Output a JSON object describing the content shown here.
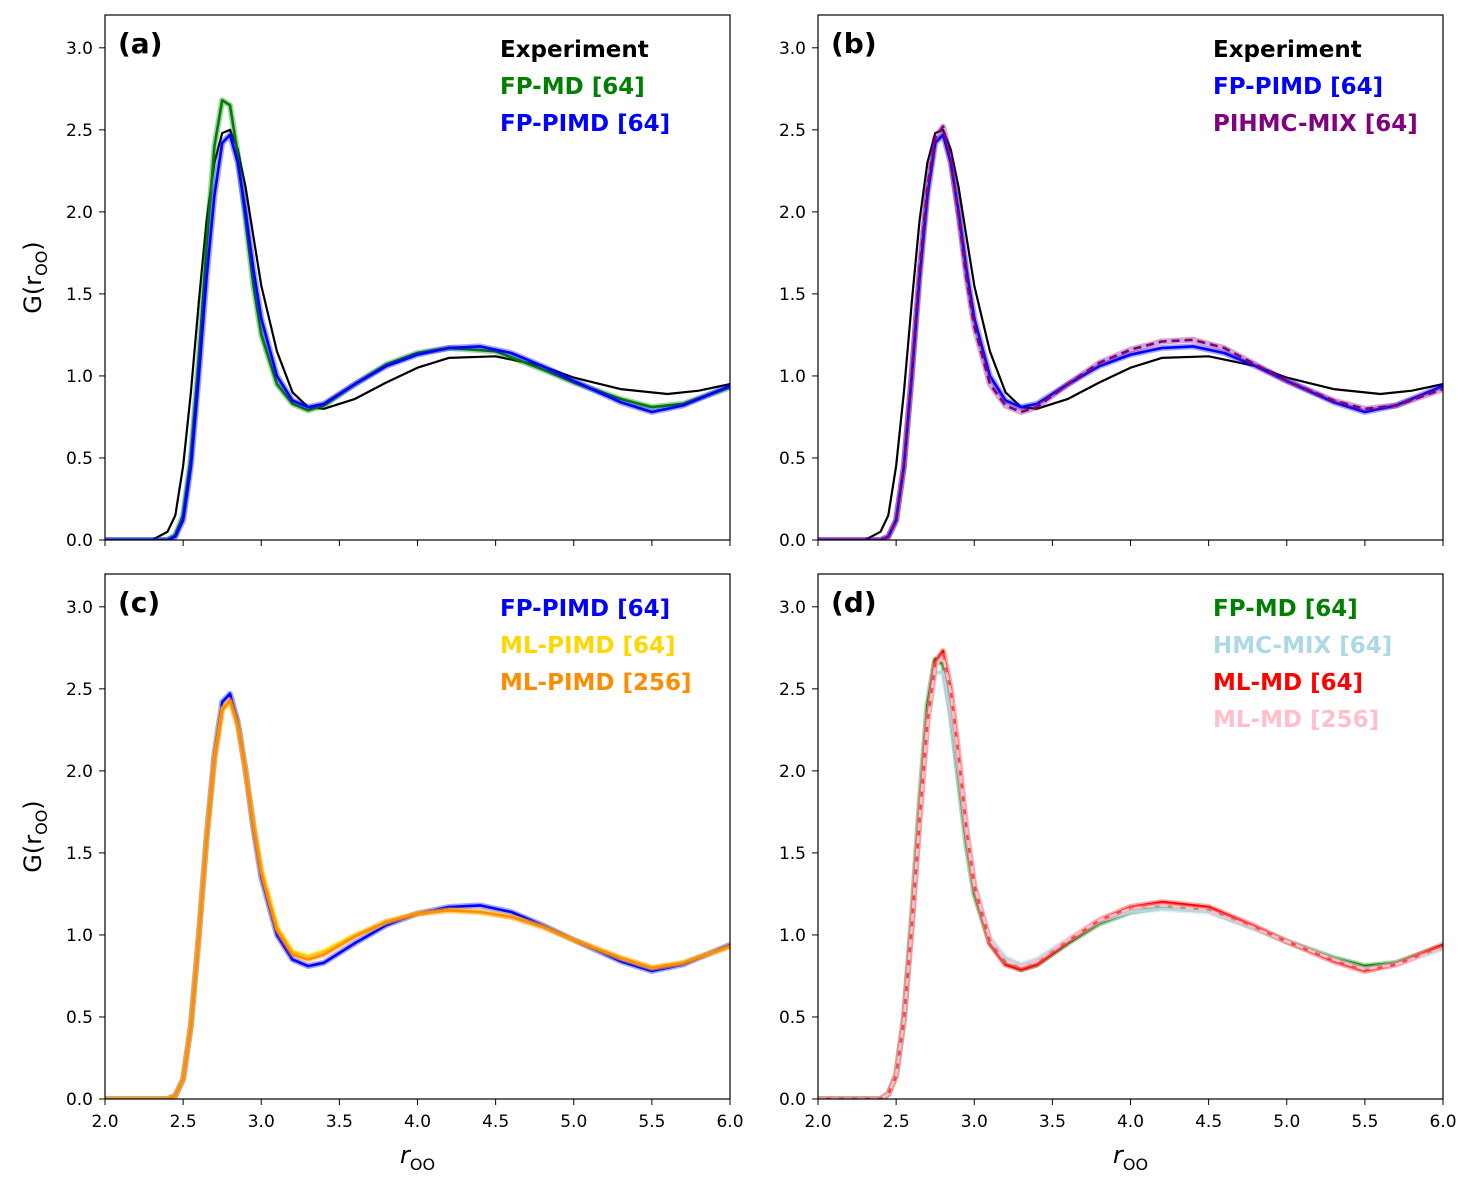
{
  "figure": {
    "ylabel_main": "G(r",
    "ylabel_sub": "OO",
    "ylabel_close": ")",
    "xlabel_main": "r",
    "xlabel_sub": "OO"
  },
  "chart_data": [
    {
      "type": "line",
      "id": "a",
      "title": "(a)",
      "xlim": [
        2.0,
        6.0
      ],
      "ylim": [
        0.0,
        3.2
      ],
      "xticks": [
        2.0,
        2.5,
        3.0,
        3.5,
        4.0,
        4.5,
        5.0,
        5.5,
        6.0
      ],
      "yticks": [
        0.0,
        0.5,
        1.0,
        1.5,
        2.0,
        2.5,
        3.0
      ],
      "show_xticklabels": false,
      "show_ylabel": true,
      "show_xlabel": false,
      "legend_position": "top-right",
      "series": [
        {
          "name": "Experiment",
          "color": "#000000",
          "dash": "solid",
          "x": [
            2.0,
            2.3,
            2.4,
            2.45,
            2.5,
            2.55,
            2.6,
            2.65,
            2.7,
            2.75,
            2.8,
            2.85,
            2.9,
            2.95,
            3.0,
            3.1,
            3.2,
            3.3,
            3.4,
            3.6,
            3.8,
            4.0,
            4.2,
            4.5,
            4.8,
            5.0,
            5.3,
            5.6,
            5.8,
            6.0
          ],
          "y": [
            0.0,
            0.0,
            0.05,
            0.15,
            0.45,
            0.9,
            1.45,
            1.95,
            2.3,
            2.48,
            2.5,
            2.38,
            2.15,
            1.85,
            1.55,
            1.15,
            0.9,
            0.81,
            0.8,
            0.86,
            0.96,
            1.05,
            1.11,
            1.12,
            1.06,
            0.99,
            0.92,
            0.89,
            0.91,
            0.95
          ]
        },
        {
          "name": "FP-MD [64]",
          "color": "#008000",
          "dash": "solid",
          "x": [
            2.0,
            2.4,
            2.45,
            2.5,
            2.55,
            2.6,
            2.65,
            2.7,
            2.75,
            2.8,
            2.85,
            2.9,
            2.95,
            3.0,
            3.1,
            3.2,
            3.3,
            3.4,
            3.6,
            3.8,
            4.0,
            4.2,
            4.5,
            4.8,
            5.0,
            5.3,
            5.5,
            5.7,
            6.0
          ],
          "y": [
            0.0,
            0.0,
            0.03,
            0.15,
            0.5,
            1.1,
            1.8,
            2.4,
            2.68,
            2.65,
            2.35,
            1.95,
            1.55,
            1.25,
            0.95,
            0.83,
            0.79,
            0.82,
            0.95,
            1.07,
            1.14,
            1.17,
            1.15,
            1.04,
            0.96,
            0.86,
            0.81,
            0.83,
            0.93
          ]
        },
        {
          "name": "FP-PIMD [64]",
          "color": "#0000ff",
          "dash": "solid",
          "x": [
            2.0,
            2.4,
            2.45,
            2.5,
            2.55,
            2.6,
            2.65,
            2.7,
            2.75,
            2.8,
            2.85,
            2.9,
            2.95,
            3.0,
            3.1,
            3.2,
            3.3,
            3.4,
            3.6,
            3.8,
            4.0,
            4.2,
            4.4,
            4.6,
            4.8,
            5.0,
            5.3,
            5.5,
            5.7,
            6.0
          ],
          "y": [
            0.0,
            0.0,
            0.02,
            0.12,
            0.45,
            1.0,
            1.6,
            2.1,
            2.42,
            2.47,
            2.3,
            2.0,
            1.65,
            1.35,
            1.0,
            0.85,
            0.81,
            0.83,
            0.95,
            1.06,
            1.13,
            1.17,
            1.18,
            1.14,
            1.06,
            0.97,
            0.84,
            0.78,
            0.82,
            0.94
          ]
        }
      ]
    },
    {
      "type": "line",
      "id": "b",
      "title": "(b)",
      "xlim": [
        2.0,
        6.0
      ],
      "ylim": [
        0.0,
        3.2
      ],
      "xticks": [
        2.0,
        2.5,
        3.0,
        3.5,
        4.0,
        4.5,
        5.0,
        5.5,
        6.0
      ],
      "yticks": [
        0.0,
        0.5,
        1.0,
        1.5,
        2.0,
        2.5,
        3.0
      ],
      "show_xticklabels": false,
      "show_ylabel": false,
      "show_xlabel": false,
      "legend_position": "top-right",
      "series": [
        {
          "name": "Experiment",
          "color": "#000000",
          "dash": "solid",
          "x": [
            2.0,
            2.3,
            2.4,
            2.45,
            2.5,
            2.55,
            2.6,
            2.65,
            2.7,
            2.75,
            2.8,
            2.85,
            2.9,
            2.95,
            3.0,
            3.1,
            3.2,
            3.3,
            3.4,
            3.6,
            3.8,
            4.0,
            4.2,
            4.5,
            4.8,
            5.0,
            5.3,
            5.6,
            5.8,
            6.0
          ],
          "y": [
            0.0,
            0.0,
            0.05,
            0.15,
            0.45,
            0.9,
            1.45,
            1.95,
            2.3,
            2.48,
            2.5,
            2.38,
            2.15,
            1.85,
            1.55,
            1.15,
            0.9,
            0.81,
            0.8,
            0.86,
            0.96,
            1.05,
            1.11,
            1.12,
            1.06,
            0.99,
            0.92,
            0.89,
            0.91,
            0.95
          ]
        },
        {
          "name": "FP-PIMD [64]",
          "color": "#0000ff",
          "dash": "solid",
          "x": [
            2.0,
            2.4,
            2.45,
            2.5,
            2.55,
            2.6,
            2.65,
            2.7,
            2.75,
            2.8,
            2.85,
            2.9,
            2.95,
            3.0,
            3.1,
            3.2,
            3.3,
            3.4,
            3.6,
            3.8,
            4.0,
            4.2,
            4.4,
            4.6,
            4.8,
            5.0,
            5.3,
            5.5,
            5.7,
            6.0
          ],
          "y": [
            0.0,
            0.0,
            0.02,
            0.12,
            0.45,
            1.0,
            1.6,
            2.1,
            2.42,
            2.47,
            2.3,
            2.0,
            1.65,
            1.35,
            1.0,
            0.85,
            0.81,
            0.83,
            0.95,
            1.06,
            1.13,
            1.17,
            1.18,
            1.14,
            1.06,
            0.97,
            0.84,
            0.78,
            0.82,
            0.94
          ]
        },
        {
          "name": "PIHMC-MIX [64]",
          "color": "#800080",
          "dash": "dashed",
          "x": [
            2.0,
            2.4,
            2.45,
            2.5,
            2.55,
            2.6,
            2.65,
            2.7,
            2.75,
            2.8,
            2.85,
            2.9,
            2.95,
            3.0,
            3.1,
            3.2,
            3.3,
            3.4,
            3.6,
            3.8,
            4.0,
            4.2,
            4.4,
            4.6,
            4.8,
            5.0,
            5.3,
            5.5,
            5.7,
            6.0
          ],
          "y": [
            0.0,
            0.0,
            0.02,
            0.12,
            0.45,
            1.02,
            1.65,
            2.15,
            2.45,
            2.52,
            2.32,
            1.98,
            1.6,
            1.3,
            0.95,
            0.82,
            0.78,
            0.81,
            0.95,
            1.08,
            1.16,
            1.21,
            1.22,
            1.17,
            1.07,
            0.97,
            0.85,
            0.8,
            0.82,
            0.92
          ]
        }
      ]
    },
    {
      "type": "line",
      "id": "c",
      "title": "(c)",
      "xlim": [
        2.0,
        6.0
      ],
      "ylim": [
        0.0,
        3.2
      ],
      "xticks": [
        2.0,
        2.5,
        3.0,
        3.5,
        4.0,
        4.5,
        5.0,
        5.5,
        6.0
      ],
      "yticks": [
        0.0,
        0.5,
        1.0,
        1.5,
        2.0,
        2.5,
        3.0
      ],
      "show_xticklabels": true,
      "show_ylabel": true,
      "show_xlabel": true,
      "legend_position": "top-right",
      "series": [
        {
          "name": "FP-PIMD [64]",
          "color": "#0000ff",
          "dash": "solid",
          "x": [
            2.0,
            2.4,
            2.45,
            2.5,
            2.55,
            2.6,
            2.65,
            2.7,
            2.75,
            2.8,
            2.85,
            2.9,
            2.95,
            3.0,
            3.1,
            3.2,
            3.3,
            3.4,
            3.6,
            3.8,
            4.0,
            4.2,
            4.4,
            4.6,
            4.8,
            5.0,
            5.3,
            5.5,
            5.7,
            6.0
          ],
          "y": [
            0.0,
            0.0,
            0.02,
            0.12,
            0.45,
            1.0,
            1.6,
            2.1,
            2.42,
            2.47,
            2.3,
            2.0,
            1.65,
            1.35,
            1.0,
            0.85,
            0.81,
            0.83,
            0.95,
            1.06,
            1.13,
            1.17,
            1.18,
            1.14,
            1.06,
            0.97,
            0.84,
            0.78,
            0.82,
            0.94
          ]
        },
        {
          "name": "ML-PIMD [64]",
          "color": "#ffd700",
          "dash": "solid",
          "x": [
            2.0,
            2.4,
            2.45,
            2.5,
            2.55,
            2.6,
            2.65,
            2.7,
            2.75,
            2.8,
            2.85,
            2.9,
            2.95,
            3.0,
            3.1,
            3.2,
            3.3,
            3.4,
            3.6,
            3.8,
            4.0,
            4.2,
            4.4,
            4.6,
            4.8,
            5.0,
            5.3,
            5.5,
            5.7,
            6.0
          ],
          "y": [
            0.0,
            0.0,
            0.02,
            0.12,
            0.45,
            1.0,
            1.6,
            2.08,
            2.38,
            2.42,
            2.28,
            2.0,
            1.68,
            1.4,
            1.05,
            0.9,
            0.87,
            0.9,
            1.0,
            1.08,
            1.13,
            1.15,
            1.14,
            1.11,
            1.05,
            0.97,
            0.86,
            0.8,
            0.83,
            0.93
          ]
        },
        {
          "name": "ML-PIMD [256]",
          "color": "#ff8c00",
          "dash": "solid",
          "x": [
            2.0,
            2.4,
            2.45,
            2.5,
            2.55,
            2.6,
            2.65,
            2.7,
            2.75,
            2.8,
            2.85,
            2.9,
            2.95,
            3.0,
            3.1,
            3.2,
            3.3,
            3.4,
            3.6,
            3.8,
            4.0,
            4.2,
            4.4,
            4.6,
            4.8,
            5.0,
            5.3,
            5.5,
            5.7,
            6.0
          ],
          "y": [
            0.0,
            0.0,
            0.02,
            0.12,
            0.44,
            0.98,
            1.58,
            2.06,
            2.37,
            2.43,
            2.28,
            2.0,
            1.67,
            1.38,
            1.03,
            0.88,
            0.85,
            0.88,
            0.99,
            1.08,
            1.13,
            1.15,
            1.14,
            1.11,
            1.05,
            0.97,
            0.86,
            0.8,
            0.83,
            0.93
          ]
        }
      ]
    },
    {
      "type": "line",
      "id": "d",
      "title": "(d)",
      "xlim": [
        2.0,
        6.0
      ],
      "ylim": [
        0.0,
        3.2
      ],
      "xticks": [
        2.0,
        2.5,
        3.0,
        3.5,
        4.0,
        4.5,
        5.0,
        5.5,
        6.0
      ],
      "yticks": [
        0.0,
        0.5,
        1.0,
        1.5,
        2.0,
        2.5,
        3.0
      ],
      "show_xticklabels": true,
      "show_ylabel": false,
      "show_xlabel": true,
      "legend_position": "top-right",
      "series": [
        {
          "name": "FP-MD [64]",
          "color": "#008000",
          "dash": "solid",
          "x": [
            2.0,
            2.4,
            2.45,
            2.5,
            2.55,
            2.6,
            2.65,
            2.7,
            2.75,
            2.8,
            2.85,
            2.9,
            2.95,
            3.0,
            3.1,
            3.2,
            3.3,
            3.4,
            3.6,
            3.8,
            4.0,
            4.2,
            4.5,
            4.8,
            5.0,
            5.3,
            5.5,
            5.7,
            6.0
          ],
          "y": [
            0.0,
            0.0,
            0.03,
            0.15,
            0.5,
            1.1,
            1.8,
            2.4,
            2.68,
            2.65,
            2.35,
            1.95,
            1.55,
            1.25,
            0.95,
            0.83,
            0.79,
            0.82,
            0.95,
            1.07,
            1.14,
            1.17,
            1.15,
            1.04,
            0.96,
            0.86,
            0.81,
            0.83,
            0.93
          ]
        },
        {
          "name": "HMC-MIX [64]",
          "color": "#add8e6",
          "dash": "solid",
          "x": [
            2.0,
            2.4,
            2.45,
            2.5,
            2.55,
            2.6,
            2.65,
            2.7,
            2.75,
            2.8,
            2.85,
            2.9,
            2.95,
            3.0,
            3.1,
            3.2,
            3.3,
            3.4,
            3.6,
            3.8,
            4.0,
            4.2,
            4.5,
            4.8,
            5.0,
            5.3,
            5.5,
            5.7,
            6.0
          ],
          "y": [
            0.0,
            0.0,
            0.03,
            0.15,
            0.48,
            1.05,
            1.72,
            2.3,
            2.6,
            2.6,
            2.35,
            1.98,
            1.6,
            1.3,
            0.98,
            0.86,
            0.82,
            0.85,
            0.97,
            1.08,
            1.14,
            1.16,
            1.14,
            1.04,
            0.96,
            0.85,
            0.79,
            0.82,
            0.92
          ]
        },
        {
          "name": "ML-MD [64]",
          "color": "#ff0000",
          "dash": "solid",
          "x": [
            2.0,
            2.4,
            2.45,
            2.5,
            2.55,
            2.6,
            2.65,
            2.7,
            2.75,
            2.8,
            2.85,
            2.9,
            2.95,
            3.0,
            3.1,
            3.2,
            3.3,
            3.4,
            3.6,
            3.8,
            4.0,
            4.2,
            4.5,
            4.8,
            5.0,
            5.3,
            5.5,
            5.7,
            6.0
          ],
          "y": [
            0.0,
            0.0,
            0.03,
            0.14,
            0.48,
            1.05,
            1.7,
            2.3,
            2.66,
            2.73,
            2.5,
            2.1,
            1.65,
            1.3,
            0.95,
            0.82,
            0.79,
            0.82,
            0.96,
            1.09,
            1.17,
            1.2,
            1.17,
            1.05,
            0.96,
            0.84,
            0.78,
            0.82,
            0.94
          ]
        },
        {
          "name": "ML-MD [256]",
          "color": "#ffc0cb",
          "dash": "dashed",
          "x": [
            2.0,
            2.4,
            2.45,
            2.5,
            2.55,
            2.6,
            2.65,
            2.7,
            2.75,
            2.8,
            2.85,
            2.9,
            2.95,
            3.0,
            3.1,
            3.2,
            3.3,
            3.4,
            3.6,
            3.8,
            4.0,
            4.2,
            4.5,
            4.8,
            5.0,
            5.3,
            5.5,
            5.7,
            6.0
          ],
          "y": [
            0.0,
            0.0,
            0.03,
            0.14,
            0.48,
            1.05,
            1.7,
            2.28,
            2.64,
            2.7,
            2.48,
            2.08,
            1.65,
            1.3,
            0.97,
            0.84,
            0.81,
            0.84,
            0.97,
            1.09,
            1.16,
            1.18,
            1.15,
            1.04,
            0.96,
            0.85,
            0.79,
            0.82,
            0.92
          ]
        }
      ]
    }
  ]
}
